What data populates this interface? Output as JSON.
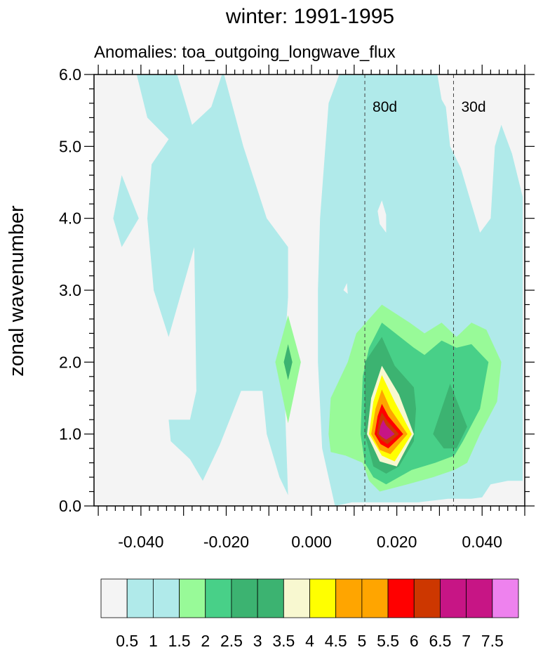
{
  "chart_data": {
    "type": "contour",
    "title": "winter: 1991-1995",
    "subtitle": "Anomalies: toa_outgoing_longwave_flux",
    "ylabel": "zonal wavenumber",
    "xlabel": "",
    "xlim": [
      -0.051,
      0.05
    ],
    "ylim": [
      0,
      6
    ],
    "x_ticks": [
      -0.04,
      -0.02,
      0.0,
      0.02,
      0.04
    ],
    "x_tick_labels": [
      "-0.040",
      "-0.020",
      "0.000",
      "0.020",
      "0.040"
    ],
    "y_ticks": [
      0,
      1,
      2,
      3,
      4,
      5,
      6
    ],
    "y_tick_labels": [
      "0.0",
      "1.0",
      "2.0",
      "3.0",
      "4.0",
      "5.0",
      "6.0"
    ],
    "period_lines": [
      {
        "label": "80d",
        "x": 0.0125
      },
      {
        "label": "30d",
        "x": 0.0333
      }
    ],
    "colorbar": {
      "levels": [
        "0.5",
        "1",
        "1.5",
        "2",
        "2.5",
        "3",
        "3.5",
        "4",
        "4.5",
        "5",
        "5.5",
        "6",
        "6.5",
        "7",
        "7.5"
      ],
      "colors": [
        "#f4f4f4",
        "#b0eaea",
        "#b0eaea",
        "#98fa98",
        "#48d088",
        "#3cb371",
        "#3cb371",
        "#f8f8d0",
        "#ffff00",
        "#ffa500",
        "#ffa500",
        "#ff0000",
        "#cd3700",
        "#c71585",
        "#c71585",
        "#ee82ee"
      ]
    },
    "regions": [
      {
        "level": "1",
        "color": "#b0eaea",
        "points": [
          [
            -0.0445,
            4.6
          ],
          [
            -0.0405,
            4.0
          ],
          [
            -0.0445,
            3.6
          ],
          [
            -0.0465,
            4.0
          ]
        ]
      },
      {
        "level": "1",
        "color": "#b0eaea",
        "points": [
          [
            -0.041,
            6.0
          ],
          [
            -0.0315,
            6.0
          ],
          [
            -0.028,
            5.3
          ],
          [
            -0.0235,
            5.55
          ],
          [
            -0.021,
            6.0
          ],
          [
            -0.0205,
            6.0
          ],
          [
            -0.016,
            5.0
          ],
          [
            -0.0105,
            4.0
          ],
          [
            -0.0055,
            3.6
          ],
          [
            -0.0055,
            2.9
          ],
          [
            -0.0065,
            2.0
          ],
          [
            -0.006,
            1.0
          ],
          [
            -0.0055,
            0.15
          ],
          [
            -0.0075,
            0.4
          ],
          [
            -0.0105,
            1.0
          ],
          [
            -0.0115,
            1.6
          ],
          [
            -0.0165,
            1.6
          ],
          [
            -0.0215,
            0.85
          ],
          [
            -0.0255,
            0.35
          ],
          [
            -0.0285,
            0.65
          ],
          [
            -0.033,
            0.9
          ],
          [
            -0.0335,
            1.2
          ],
          [
            -0.0285,
            1.2
          ],
          [
            -0.027,
            1.6
          ],
          [
            -0.0275,
            3.6
          ],
          [
            -0.0335,
            2.35
          ],
          [
            -0.037,
            3.0
          ],
          [
            -0.0385,
            4.0
          ],
          [
            -0.0375,
            4.75
          ],
          [
            -0.0335,
            5.1
          ],
          [
            -0.0385,
            5.4
          ]
        ]
      },
      {
        "level": "1",
        "color": "#b0eaea",
        "points": [
          [
            0.004,
            5.6
          ],
          [
            0.0065,
            6.0
          ],
          [
            0.0295,
            6.0
          ],
          [
            0.0305,
            5.65
          ],
          [
            0.0315,
            5.55
          ],
          [
            0.0325,
            5.0
          ],
          [
            0.035,
            4.7
          ],
          [
            0.0375,
            4.2
          ],
          [
            0.0395,
            3.8
          ],
          [
            0.042,
            4.0
          ],
          [
            0.043,
            5.0
          ],
          [
            0.0445,
            5.3
          ],
          [
            0.047,
            4.9
          ],
          [
            0.0495,
            4.3
          ],
          [
            0.0495,
            0.35
          ],
          [
            0.046,
            0.35
          ],
          [
            0.042,
            0.3
          ],
          [
            0.04,
            0.12
          ],
          [
            0.0375,
            0.1
          ],
          [
            0.032,
            0.1
          ],
          [
            0.025,
            0.05
          ],
          [
            0.018,
            0.05
          ],
          [
            0.0095,
            0.05
          ],
          [
            0.0055,
            0.0
          ],
          [
            0.0025,
            0.8
          ],
          [
            0.0015,
            2.0
          ],
          [
            0.0015,
            3.0
          ],
          [
            0.002,
            4.0
          ]
        ]
      },
      {
        "level": "0.5",
        "color": "#f4f4f4",
        "points": [
          [
            0.0075,
            3.0
          ],
          [
            0.0083,
            3.1
          ],
          [
            0.0085,
            2.95
          ]
        ]
      },
      {
        "level": "0.5",
        "color": "#f4f4f4",
        "points": [
          [
            0.0155,
            4.1
          ],
          [
            0.016,
            3.92
          ],
          [
            0.0175,
            3.8
          ],
          [
            0.0175,
            4.05
          ],
          [
            0.0165,
            4.25
          ]
        ]
      },
      {
        "level": "2",
        "color": "#98fa98",
        "points": [
          [
            -0.0055,
            2.65
          ],
          [
            -0.0025,
            2.0
          ],
          [
            -0.0055,
            1.15
          ],
          [
            -0.0085,
            2.0
          ]
        ]
      },
      {
        "level": "2",
        "color": "#98fa98",
        "points": [
          [
            0.004,
            1.0
          ],
          [
            0.0045,
            1.5
          ],
          [
            0.0085,
            2.0
          ],
          [
            0.0105,
            2.4
          ],
          [
            0.0165,
            2.8
          ],
          [
            0.023,
            2.55
          ],
          [
            0.0265,
            2.4
          ],
          [
            0.0305,
            2.55
          ],
          [
            0.034,
            2.35
          ],
          [
            0.0375,
            2.55
          ],
          [
            0.041,
            2.45
          ],
          [
            0.0445,
            2.0
          ],
          [
            0.0435,
            1.45
          ],
          [
            0.0395,
            1.0
          ],
          [
            0.0365,
            0.6
          ],
          [
            0.0335,
            0.5
          ],
          [
            0.0285,
            0.4
          ],
          [
            0.0225,
            0.3
          ],
          [
            0.016,
            0.2
          ],
          [
            0.0135,
            0.35
          ],
          [
            0.012,
            0.6
          ],
          [
            0.008,
            0.7
          ],
          [
            0.0045,
            0.75
          ]
        ]
      },
      {
        "level": "2.5",
        "color": "#48d088",
        "points": [
          [
            0.012,
            1.8
          ],
          [
            0.0135,
            2.2
          ],
          [
            0.0165,
            2.55
          ],
          [
            0.024,
            2.2
          ],
          [
            0.0265,
            2.1
          ],
          [
            0.0305,
            2.3
          ],
          [
            0.034,
            2.2
          ],
          [
            0.0375,
            2.25
          ],
          [
            0.0415,
            2.0
          ],
          [
            0.0395,
            1.35
          ],
          [
            0.0355,
            0.9
          ],
          [
            0.0335,
            0.7
          ],
          [
            0.029,
            0.6
          ],
          [
            0.0235,
            0.5
          ],
          [
            0.0175,
            0.3
          ],
          [
            0.0145,
            0.4
          ],
          [
            0.0125,
            0.6
          ],
          [
            0.0115,
            1.0
          ]
        ]
      },
      {
        "level": "3",
        "color": "#3cb371",
        "points": [
          [
            -0.0055,
            2.25
          ],
          [
            -0.0045,
            2.0
          ],
          [
            -0.0055,
            1.75
          ],
          [
            -0.0065,
            2.0
          ]
        ]
      },
      {
        "level": "3",
        "color": "#3cb371",
        "points": [
          [
            0.0125,
            1.0
          ],
          [
            0.0125,
            2.0
          ],
          [
            0.0165,
            2.35
          ],
          [
            0.0195,
            1.95
          ],
          [
            0.024,
            1.65
          ],
          [
            0.0245,
            1.35
          ],
          [
            0.024,
            0.9
          ],
          [
            0.0205,
            0.55
          ],
          [
            0.0175,
            0.45
          ],
          [
            0.0145,
            0.55
          ]
        ]
      },
      {
        "level": "3",
        "color": "#3cb371",
        "points": [
          [
            0.0285,
            1.0
          ],
          [
            0.0325,
            1.7
          ],
          [
            0.0365,
            1.1
          ],
          [
            0.034,
            0.8
          ],
          [
            0.031,
            0.8
          ]
        ]
      },
      {
        "level": "3.5",
        "color": "#f8f8d0",
        "points": [
          [
            0.0165,
            1.95
          ],
          [
            0.0205,
            1.55
          ],
          [
            0.024,
            1.0
          ],
          [
            0.02,
            0.55
          ],
          [
            0.016,
            0.62
          ],
          [
            0.013,
            1.0
          ],
          [
            0.014,
            1.5
          ]
        ]
      },
      {
        "level": "4",
        "color": "#ffff00",
        "points": [
          [
            0.0165,
            1.82
          ],
          [
            0.0195,
            1.45
          ],
          [
            0.0235,
            1.0
          ],
          [
            0.0195,
            0.62
          ],
          [
            0.0165,
            0.7
          ],
          [
            0.0135,
            1.0
          ],
          [
            0.0145,
            1.45
          ]
        ]
      },
      {
        "level": "4.5",
        "color": "#ffa500",
        "points": [
          [
            0.0165,
            1.62
          ],
          [
            0.0185,
            1.35
          ],
          [
            0.0225,
            1.0
          ],
          [
            0.0185,
            0.72
          ],
          [
            0.016,
            0.78
          ],
          [
            0.014,
            1.0
          ],
          [
            0.015,
            1.35
          ]
        ]
      },
      {
        "level": "5.5",
        "color": "#ff0000",
        "points": [
          [
            0.0165,
            1.42
          ],
          [
            0.018,
            1.25
          ],
          [
            0.0215,
            1.0
          ],
          [
            0.018,
            0.8
          ],
          [
            0.0162,
            0.86
          ],
          [
            0.0148,
            1.0
          ],
          [
            0.0155,
            1.25
          ]
        ]
      },
      {
        "level": "6",
        "color": "#cd3700",
        "points": [
          [
            0.0165,
            1.3
          ],
          [
            0.0178,
            1.18
          ],
          [
            0.0205,
            1.0
          ],
          [
            0.0178,
            0.86
          ],
          [
            0.0163,
            0.92
          ],
          [
            0.0153,
            1.0
          ],
          [
            0.0158,
            1.18
          ]
        ]
      },
      {
        "level": "6.5",
        "color": "#c71585",
        "points": [
          [
            0.0168,
            1.2
          ],
          [
            0.0175,
            1.12
          ],
          [
            0.0195,
            1.0
          ],
          [
            0.0175,
            0.92
          ],
          [
            0.0165,
            0.96
          ],
          [
            0.0158,
            1.0
          ],
          [
            0.0162,
            1.12
          ]
        ]
      }
    ]
  }
}
